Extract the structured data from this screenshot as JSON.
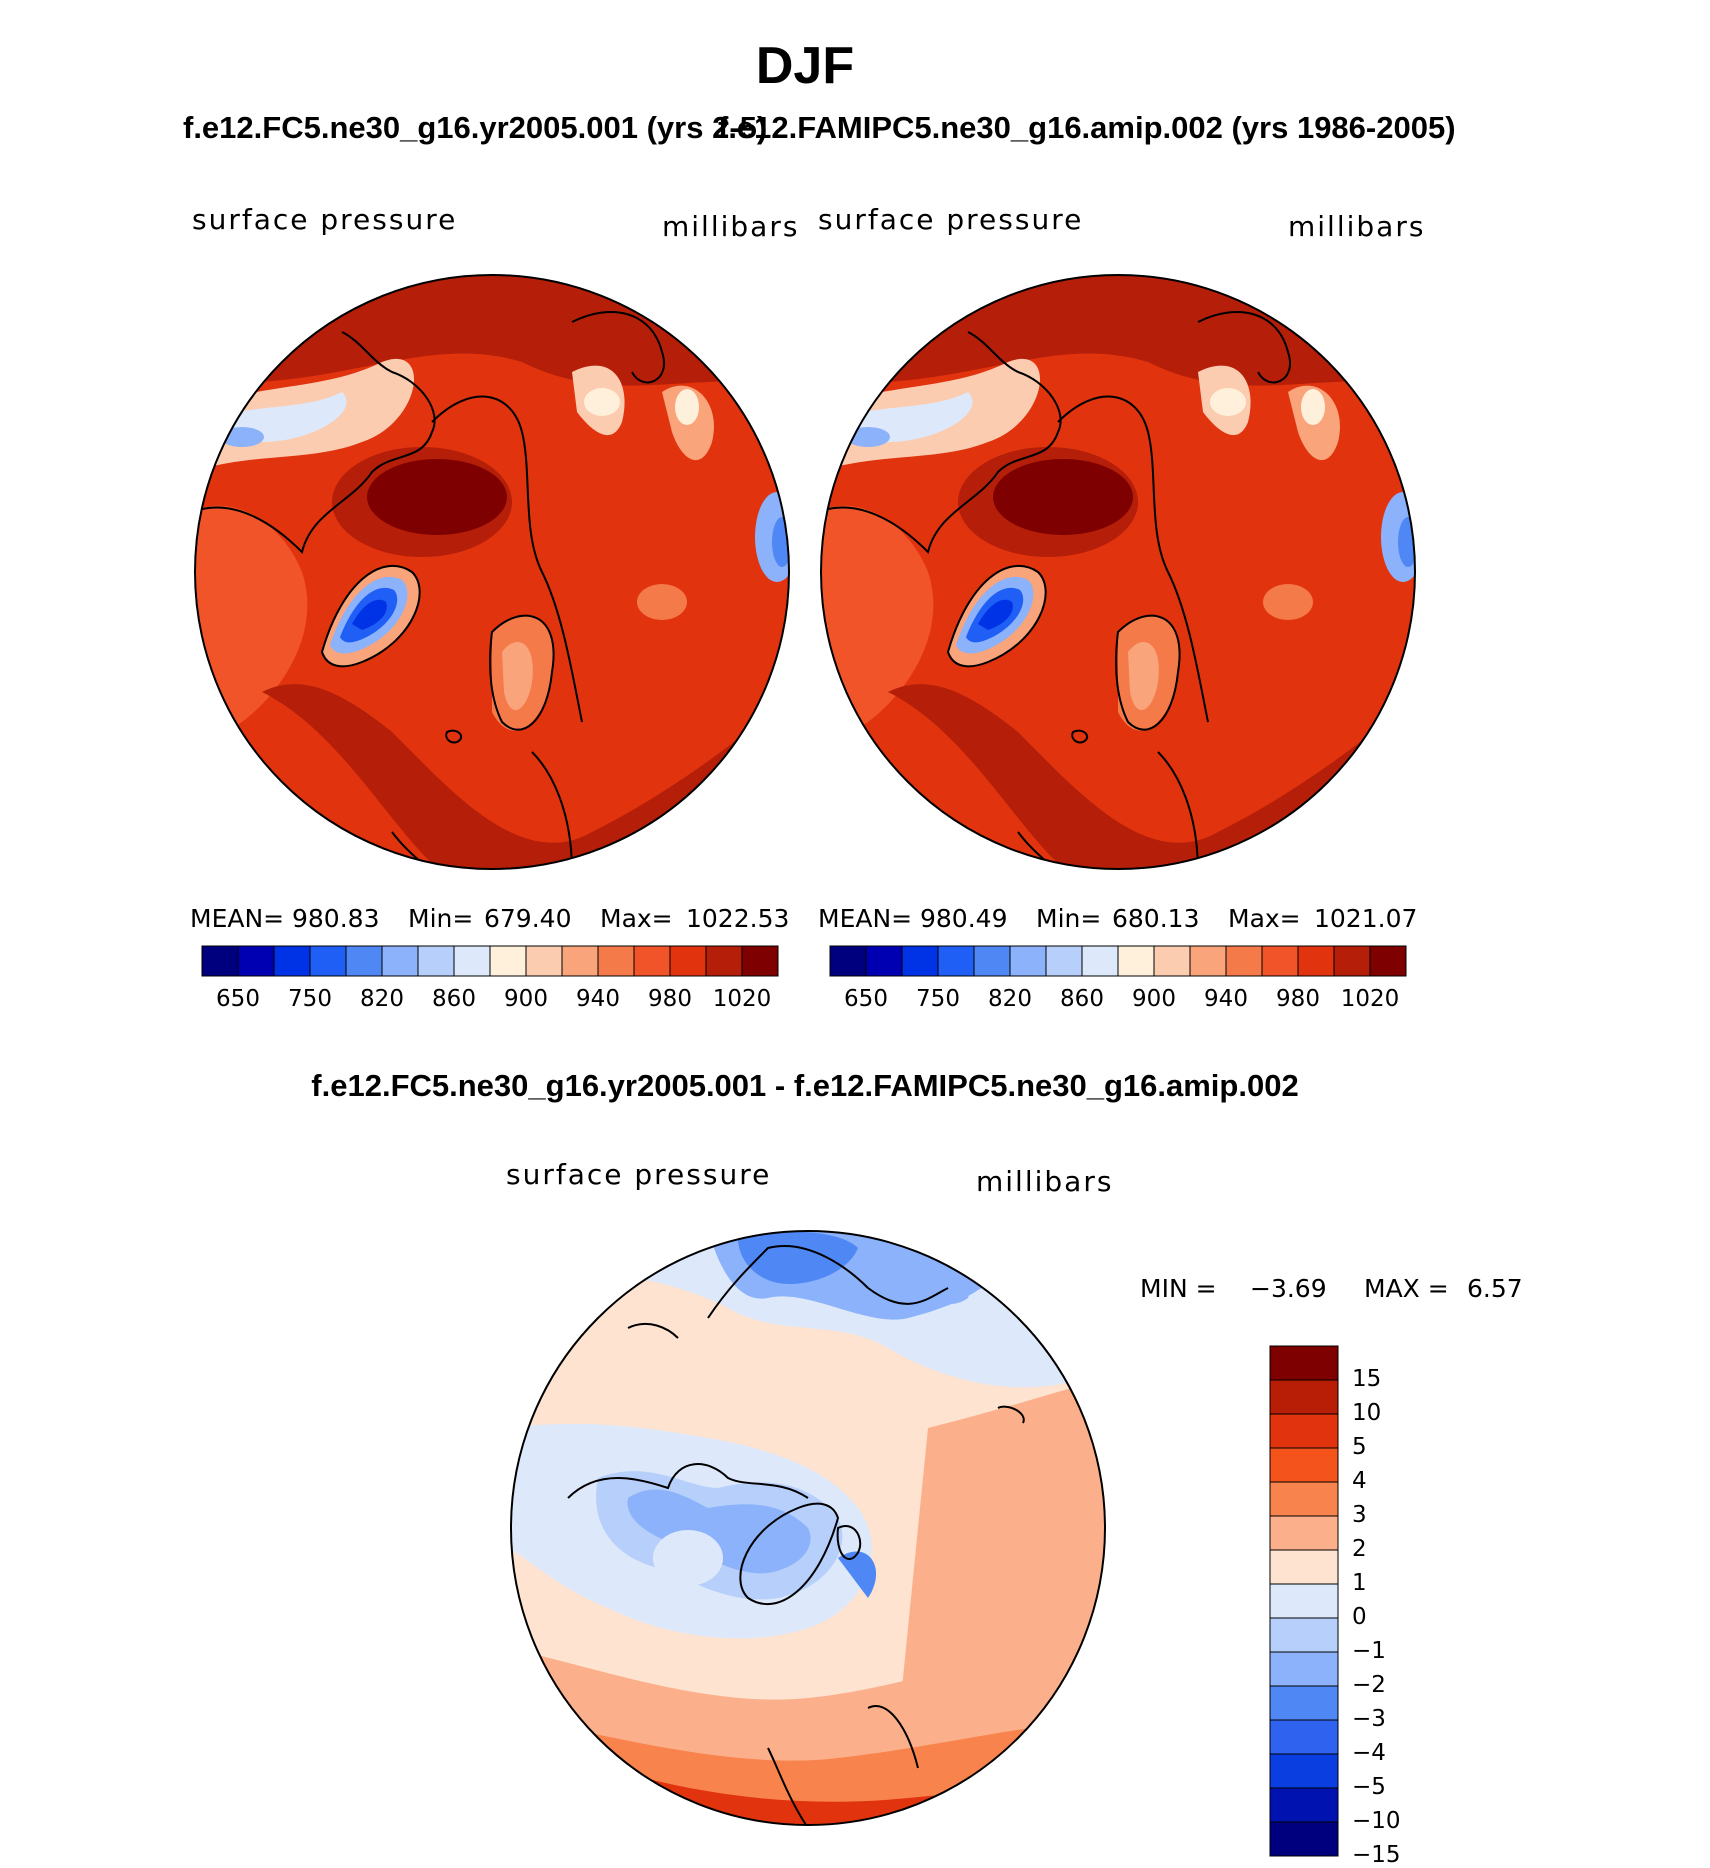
{
  "page": {
    "season": "DJF",
    "header_left": "f.e12.FC5.ne30_g16.yr2005.001 (yrs 2-5)",
    "header_right": "f.e12.FAMIPC5.ne30_g16.amip.002 (yrs 1986-2005)",
    "diff_title": "f.e12.FC5.ne30_g16.yr2005.001 - f.e12.FAMIPC5.ne30_g16.amip.002"
  },
  "palettes": {
    "field_colors": [
      "#00007f",
      "#0000b2",
      "#0033e5",
      "#1f5ff5",
      "#4f88f5",
      "#8bb2fa",
      "#b6cffb",
      "#dde9fb",
      "#fff0dc",
      "#fcccb0",
      "#f9a47a",
      "#f57a4a",
      "#f2542a",
      "#e0330e",
      "#b51e08",
      "#7e0000"
    ],
    "diff_colors": [
      "#7e0000",
      "#b81d05",
      "#e0330e",
      "#f4541b",
      "#f9834c",
      "#fbaf8a",
      "#fde3d0",
      "#dde9fb",
      "#b6cffb",
      "#8bb2fa",
      "#4f88f5",
      "#2f63ef",
      "#0b3ee0",
      "#0013b0",
      "#00007f"
    ]
  },
  "chart_data": [
    {
      "type": "heatmap",
      "projection": "north-polar-stereographic",
      "left_label": "surface pressure",
      "right_label": "millibars",
      "stats": {
        "mean_label": "MEAN=",
        "mean": "980.83",
        "min_label": "Min=",
        "min": "679.40",
        "max_label": "Max=",
        "max": "1022.53"
      },
      "colorbar_ticks": [
        "650",
        "750",
        "820",
        "860",
        "900",
        "940",
        "980",
        "1020"
      ]
    },
    {
      "type": "heatmap",
      "projection": "north-polar-stereographic",
      "left_label": "surface pressure",
      "right_label": "millibars",
      "stats": {
        "mean_label": "MEAN=",
        "mean": "980.49",
        "min_label": "Min=",
        "min": "680.13",
        "max_label": "Max=",
        "max": "1021.07"
      },
      "colorbar_ticks": [
        "650",
        "750",
        "820",
        "860",
        "900",
        "940",
        "980",
        "1020"
      ]
    },
    {
      "type": "heatmap",
      "projection": "north-polar-stereographic",
      "left_label": "surface pressure",
      "right_label": "millibars",
      "stats": {
        "min_label": "MIN =",
        "min": "−3.69",
        "max_label": "MAX =",
        "max": "6.57"
      },
      "colorbar_ticks": [
        "15",
        "10",
        "5",
        "4",
        "3",
        "2",
        "1",
        "0",
        "−1",
        "−2",
        "−3",
        "−4",
        "−5",
        "−10",
        "−15"
      ]
    }
  ]
}
